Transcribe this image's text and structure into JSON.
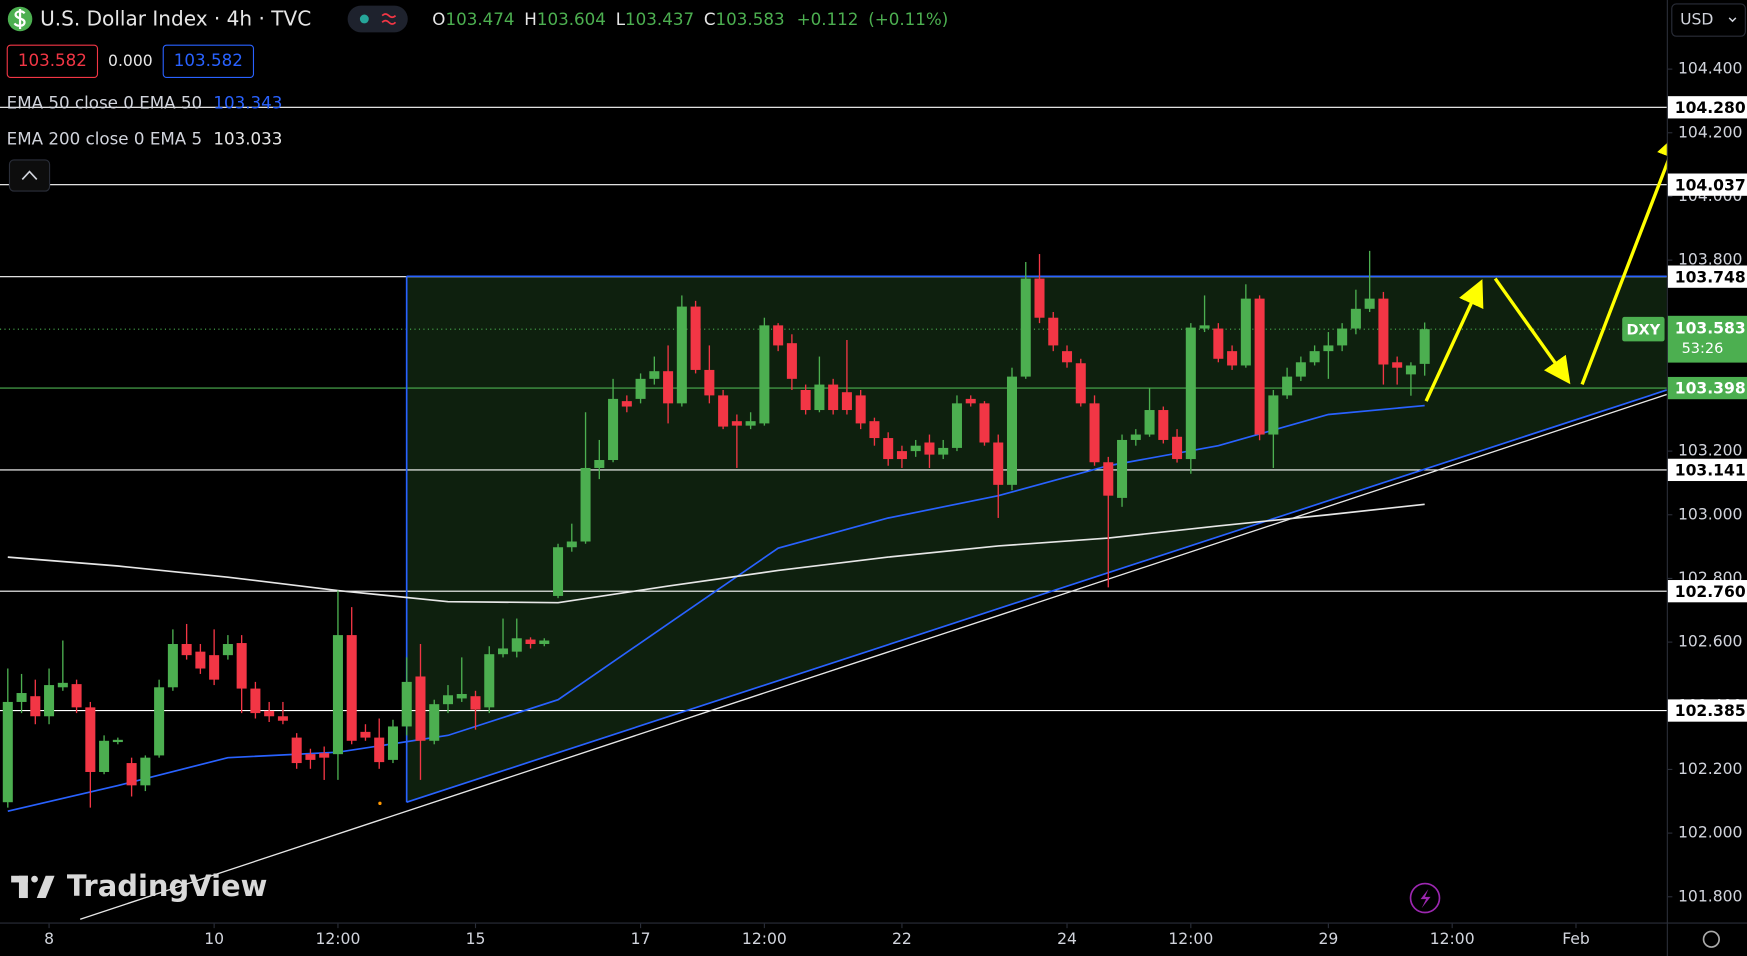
{
  "header": {
    "title": "U.S. Dollar Index · 4h · TVC",
    "ohlc_letters": [
      "O",
      "H",
      "L",
      "C"
    ],
    "change": "+0.112",
    "change_pct": "(+0.11%)",
    "sell": "103.582",
    "spread": "0.000",
    "buy": "103.582",
    "currency": "USD",
    "watermark": "TradingView"
  },
  "chart_data": {
    "type": "candlestick",
    "up_color": "#4caf50",
    "down_color": "#f23645",
    "xlim": [
      -0.567,
      120.6
    ],
    "ylim": [
      101.719,
      104.617
    ],
    "xticks": [
      {
        "value": 3,
        "label": "8"
      },
      {
        "value": 15,
        "label": "10"
      },
      {
        "value": 24,
        "label": "12:00"
      },
      {
        "value": 34,
        "label": "15"
      },
      {
        "value": 46,
        "label": "17"
      },
      {
        "value": 55,
        "label": "12:00"
      },
      {
        "value": 65,
        "label": "22"
      },
      {
        "value": 77,
        "label": "24"
      },
      {
        "value": 86,
        "label": "12:00"
      },
      {
        "value": 96,
        "label": "29"
      },
      {
        "value": 105,
        "label": "12:00"
      },
      {
        "value": 114,
        "label": "Feb"
      }
    ],
    "yticks": [
      {
        "value": 101.8,
        "label": "101.800"
      },
      {
        "value": 102.0,
        "label": "102.000"
      },
      {
        "value": 102.2,
        "label": "102.200"
      },
      {
        "value": 102.4,
        "label": "102.400"
      },
      {
        "value": 102.6,
        "label": "102.600"
      },
      {
        "value": 102.8,
        "label": "102.800"
      },
      {
        "value": 103.0,
        "label": "103.000"
      },
      {
        "value": 103.2,
        "label": "103.200"
      },
      {
        "value": 103.4,
        "label": "103.400"
      },
      {
        "value": 103.6,
        "label": "103.600"
      },
      {
        "value": 103.8,
        "label": "103.800"
      },
      {
        "value": 104.0,
        "label": "104.000"
      },
      {
        "value": 104.2,
        "label": "104.200"
      },
      {
        "value": 104.4,
        "label": "104.400"
      }
    ],
    "candles": {
      "open": [
        102.097,
        102.412,
        102.43,
        102.367,
        102.458,
        102.468,
        102.395,
        102.192,
        102.286,
        102.22,
        102.15,
        102.244,
        102.458,
        102.594,
        102.57,
        102.559,
        102.559,
        102.597,
        102.454,
        102.384,
        102.367,
        102.3,
        102.248,
        102.251,
        102.248,
        102.622,
        102.318,
        102.3,
        102.23,
        102.335,
        102.492,
        102.29,
        102.405,
        102.423,
        102.43,
        102.395,
        102.562,
        102.57,
        102.608,
        102.594,
        102.745,
        102.898,
        102.916,
        103.147,
        103.172,
        103.357,
        103.364,
        103.427,
        103.451,
        103.35,
        103.654,
        103.455,
        103.375,
        103.294,
        103.28,
        103.287,
        103.595,
        103.539,
        103.392,
        103.329,
        103.409,
        103.385,
        103.375,
        103.294,
        103.241,
        103.2,
        103.2,
        103.227,
        103.189,
        103.21,
        103.364,
        103.35,
        103.227,
        103.094,
        103.434,
        103.742,
        103.619,
        103.514,
        103.476,
        103.35,
        103.165,
        103.053,
        103.235,
        103.252,
        103.329,
        103.245,
        103.175,
        103.585,
        103.585,
        103.514,
        103.469,
        103.679,
        103.252,
        103.375,
        103.434,
        103.479,
        103.514,
        103.532,
        103.585,
        103.647,
        103.679,
        103.479,
        103.441,
        103.474
      ],
      "high": [
        102.517,
        102.5,
        102.482,
        102.517,
        102.605,
        102.482,
        102.412,
        102.307,
        102.3,
        102.237,
        102.244,
        102.482,
        102.64,
        102.657,
        102.594,
        102.64,
        102.622,
        102.622,
        102.475,
        102.412,
        102.412,
        102.314,
        102.265,
        102.272,
        102.762,
        102.71,
        102.342,
        102.36,
        102.356,
        102.552,
        102.594,
        102.419,
        102.465,
        102.552,
        102.447,
        102.587,
        102.674,
        102.674,
        102.615,
        102.612,
        102.909,
        102.972,
        103.322,
        103.235,
        103.427,
        103.375,
        103.444,
        103.497,
        103.532,
        103.689,
        103.672,
        103.532,
        103.392,
        103.315,
        103.322,
        103.619,
        103.602,
        103.567,
        103.409,
        103.497,
        103.427,
        103.549,
        103.392,
        103.305,
        103.259,
        103.217,
        103.235,
        103.252,
        103.235,
        103.375,
        103.375,
        103.357,
        103.252,
        103.462,
        103.794,
        103.819,
        103.637,
        103.532,
        103.49,
        103.375,
        103.182,
        103.252,
        103.269,
        103.399,
        103.34,
        103.269,
        103.602,
        103.689,
        103.602,
        103.532,
        103.724,
        103.689,
        103.392,
        103.462,
        103.497,
        103.532,
        103.574,
        103.602,
        103.707,
        103.829,
        103.7,
        103.497,
        103.479,
        103.604
      ],
      "low": [
        102.08,
        102.377,
        102.342,
        102.342,
        102.447,
        102.377,
        102.08,
        102.185,
        102.279,
        102.115,
        102.132,
        102.237,
        102.447,
        102.545,
        102.5,
        102.465,
        102.545,
        102.377,
        102.36,
        102.349,
        102.342,
        102.202,
        102.202,
        102.167,
        102.167,
        102.279,
        102.29,
        102.202,
        102.22,
        102.307,
        102.167,
        102.279,
        102.377,
        102.412,
        102.325,
        102.377,
        102.552,
        102.552,
        102.58,
        102.587,
        102.738,
        102.884,
        102.909,
        103.112,
        103.165,
        103.322,
        103.35,
        103.409,
        103.287,
        103.34,
        103.444,
        103.35,
        103.269,
        103.147,
        103.269,
        103.28,
        103.514,
        103.392,
        103.315,
        103.322,
        103.315,
        103.315,
        103.269,
        103.217,
        103.154,
        103.147,
        103.182,
        103.147,
        103.175,
        103.2,
        103.34,
        103.217,
        102.99,
        103.077,
        103.427,
        103.602,
        103.514,
        103.462,
        103.34,
        103.154,
        102.772,
        103.025,
        103.217,
        103.245,
        103.224,
        103.164,
        103.129,
        103.574,
        103.479,
        103.455,
        103.462,
        103.234,
        103.147,
        103.364,
        103.42,
        103.469,
        103.427,
        103.514,
        103.567,
        103.637,
        103.409,
        103.409,
        103.374,
        103.437
      ],
      "close": [
        102.412,
        102.44,
        102.367,
        102.465,
        102.472,
        102.395,
        102.192,
        102.29,
        102.293,
        102.15,
        102.237,
        102.458,
        102.594,
        102.559,
        102.517,
        102.482,
        102.594,
        102.454,
        102.377,
        102.367,
        102.353,
        102.22,
        102.23,
        102.237,
        102.622,
        102.29,
        102.3,
        102.223,
        102.335,
        102.475,
        102.29,
        102.405,
        102.433,
        102.437,
        102.388,
        102.562,
        102.58,
        102.612,
        102.594,
        102.605,
        102.898,
        102.916,
        103.147,
        103.172,
        103.364,
        103.34,
        103.427,
        103.451,
        103.35,
        103.654,
        103.455,
        103.375,
        103.277,
        103.28,
        103.294,
        103.595,
        103.532,
        103.427,
        103.329,
        103.409,
        103.329,
        103.329,
        103.287,
        103.241,
        103.175,
        103.175,
        103.217,
        103.189,
        103.21,
        103.35,
        103.35,
        103.227,
        103.094,
        103.434,
        103.742,
        103.619,
        103.532,
        103.479,
        103.35,
        103.165,
        103.06,
        103.235,
        103.252,
        103.329,
        103.235,
        103.175,
        103.588,
        103.595,
        103.49,
        103.469,
        103.679,
        103.252,
        103.375,
        103.434,
        103.479,
        103.514,
        103.532,
        103.585,
        103.647,
        103.679,
        103.472,
        103.462,
        103.469,
        103.583
      ]
    },
    "series": [
      {
        "name": "EMA 50 close 0 EMA 50",
        "color": "#2962ff",
        "x": [
          0,
          8,
          16,
          24,
          32,
          40,
          48,
          56,
          64,
          72,
          80,
          88,
          96,
          103
        ],
        "values": [
          102.069,
          102.149,
          102.237,
          102.254,
          102.307,
          102.419,
          102.657,
          102.895,
          102.99,
          103.06,
          103.154,
          103.217,
          103.315,
          103.343
        ]
      },
      {
        "name": "EMA 200 close 0 EMA 5",
        "color": "#e6e6e6",
        "x": [
          0,
          8,
          16,
          24,
          32,
          40,
          48,
          56,
          64,
          72,
          80,
          88,
          96,
          103
        ],
        "values": [
          102.867,
          102.839,
          102.804,
          102.762,
          102.727,
          102.724,
          102.776,
          102.825,
          102.867,
          102.902,
          102.927,
          102.965,
          103.0,
          103.033
        ]
      }
    ],
    "levels": [
      {
        "value": 104.28,
        "label": "104.280",
        "color": "#ffffff"
      },
      {
        "value": 104.037,
        "label": "104.037",
        "color": "#ffffff"
      },
      {
        "value": 103.748,
        "label": "103.748",
        "color": "#ffffff"
      },
      {
        "value": 103.398,
        "label": "103.398",
        "color": "#4caf50"
      },
      {
        "value": 103.141,
        "label": "103.141",
        "color": "#ffffff"
      },
      {
        "value": 102.76,
        "label": "102.760",
        "color": "#ffffff"
      },
      {
        "value": 102.385,
        "label": "102.385",
        "color": "#ffffff"
      }
    ],
    "symbol_tag": "DXY",
    "countdown": "53:26",
    "last_color": "#4caf50"
  }
}
